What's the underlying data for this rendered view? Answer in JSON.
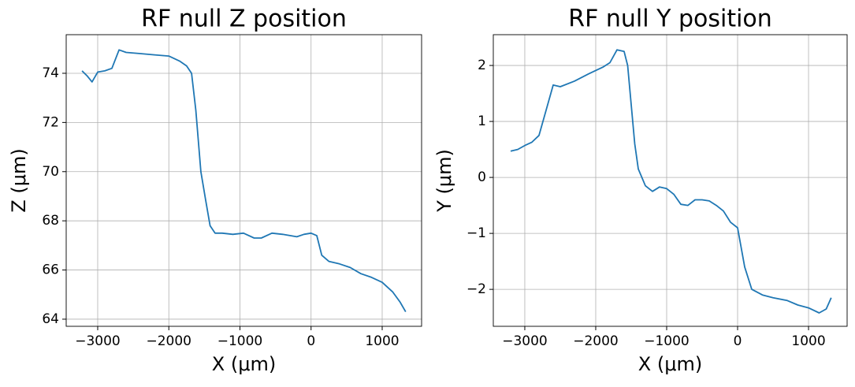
{
  "chart_data": [
    {
      "type": "line",
      "title": "RF null Z position",
      "xlabel": "X (μm)",
      "ylabel": "Z (μm)",
      "color": "#1f77b4",
      "grid": true,
      "xlim": [
        -3443,
        1554
      ],
      "ylim": [
        63.71,
        75.57
      ],
      "xticks": [
        {
          "value": -3000,
          "label": "−3000"
        },
        {
          "value": -2000,
          "label": "−2000"
        },
        {
          "value": -1000,
          "label": "−1000"
        },
        0,
        1000
      ],
      "yticks": [
        64,
        66,
        68,
        70,
        72,
        74
      ],
      "x": [
        -3220,
        -3150,
        -3080,
        -3000,
        -2900,
        -2800,
        -2700,
        -2600,
        -2400,
        -2200,
        -2000,
        -1850,
        -1750,
        -1680,
        -1620,
        -1550,
        -1480,
        -1420,
        -1350,
        -1250,
        -1100,
        -950,
        -800,
        -700,
        -550,
        -400,
        -200,
        -100,
        0,
        80,
        150,
        250,
        400,
        550,
        700,
        850,
        1000,
        1150,
        1250,
        1330
      ],
      "values": [
        74.1,
        73.9,
        73.65,
        74.05,
        74.1,
        74.2,
        74.95,
        74.85,
        74.8,
        74.75,
        74.7,
        74.5,
        74.3,
        74.0,
        72.5,
        70.0,
        68.8,
        67.8,
        67.5,
        67.5,
        67.45,
        67.5,
        67.3,
        67.3,
        67.5,
        67.45,
        67.35,
        67.45,
        67.5,
        67.4,
        66.6,
        66.35,
        66.25,
        66.1,
        65.85,
        65.7,
        65.5,
        65.1,
        64.7,
        64.3
      ]
    },
    {
      "type": "line",
      "title": "RF null Y position",
      "xlabel": "X (μm)",
      "ylabel": "Y (μm)",
      "color": "#1f77b4",
      "grid": true,
      "xlim": [
        -3444,
        1544
      ],
      "ylim": [
        -2.66,
        2.55
      ],
      "xticks": [
        {
          "value": -3000,
          "label": "−3000"
        },
        {
          "value": -2000,
          "label": "−2000"
        },
        {
          "value": -1000,
          "label": "−1000"
        },
        0,
        1000
      ],
      "yticks": [
        {
          "value": -2,
          "label": "−2"
        },
        {
          "value": -1,
          "label": "−1"
        },
        0,
        1,
        2
      ],
      "x": [
        -3200,
        -3100,
        -3000,
        -2900,
        -2800,
        -2700,
        -2600,
        -2500,
        -2300,
        -2100,
        -1900,
        -1800,
        -1700,
        -1600,
        -1550,
        -1500,
        -1450,
        -1400,
        -1300,
        -1200,
        -1100,
        -1000,
        -900,
        -800,
        -700,
        -600,
        -500,
        -400,
        -300,
        -200,
        -100,
        0,
        100,
        200,
        350,
        500,
        700,
        850,
        1000,
        1150,
        1250,
        1320
      ],
      "values": [
        0.47,
        0.5,
        0.57,
        0.63,
        0.75,
        1.2,
        1.65,
        1.62,
        1.72,
        1.85,
        1.97,
        2.05,
        2.28,
        2.25,
        2.0,
        1.3,
        0.6,
        0.15,
        -0.15,
        -0.25,
        -0.17,
        -0.2,
        -0.3,
        -0.48,
        -0.5,
        -0.4,
        -0.4,
        -0.42,
        -0.5,
        -0.6,
        -0.8,
        -0.9,
        -1.6,
        -2.0,
        -2.1,
        -2.15,
        -2.2,
        -2.28,
        -2.33,
        -2.42,
        -2.35,
        -2.15
      ]
    }
  ]
}
